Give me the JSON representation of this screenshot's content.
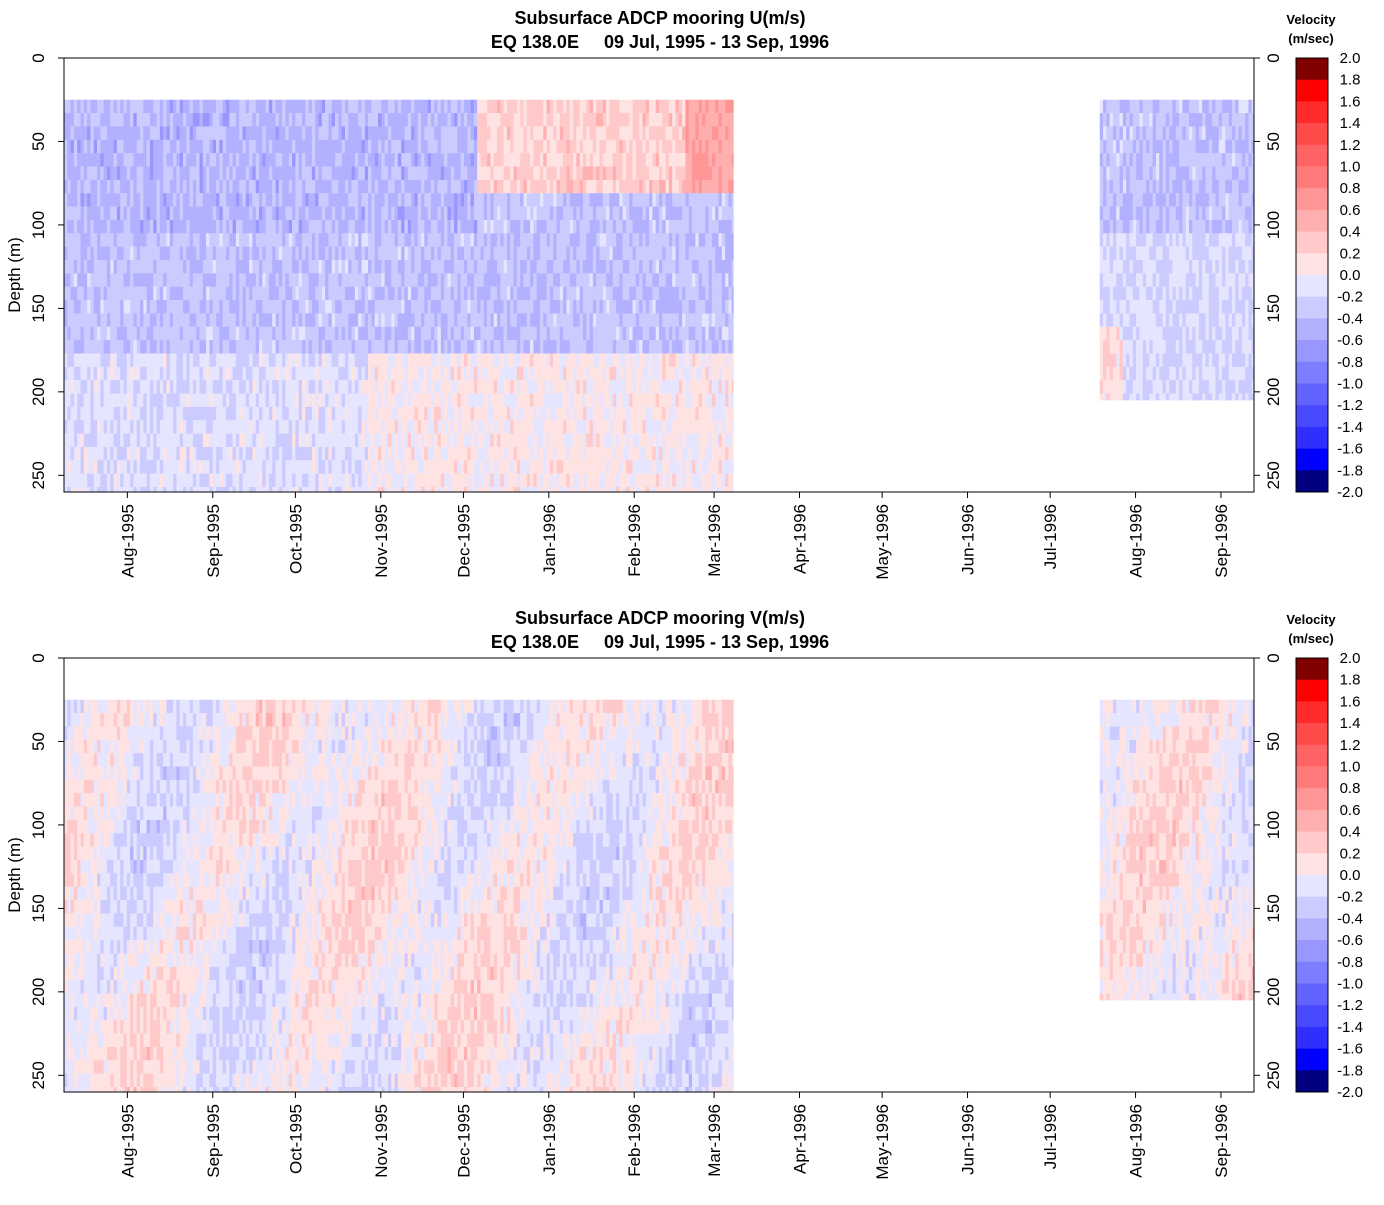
{
  "colorbar": {
    "title_line1": "Velocity",
    "title_line2": "(m/sec)",
    "levels": [
      "2.0",
      "1.8",
      "1.6",
      "1.4",
      "1.2",
      "1.0",
      "0.8",
      "0.6",
      "0.4",
      "0.2",
      "0.0",
      "-0.2",
      "-0.4",
      "-0.6",
      "-0.8",
      "-1.0",
      "-1.2",
      "-1.4",
      "-1.6",
      "-1.8",
      "-2.0"
    ],
    "colors": [
      "#800000",
      "#ff0000",
      "#ff2a2a",
      "#ff4a4a",
      "#ff6363",
      "#ff7b7b",
      "#ff9595",
      "#ffafaf",
      "#ffc9c9",
      "#ffe3e3",
      "#e5e5ff",
      "#cbcbff",
      "#b1b1ff",
      "#9797ff",
      "#7d7dff",
      "#6363ff",
      "#4949ff",
      "#2f2fff",
      "#0000ff",
      "#000080"
    ]
  },
  "chart_data": [
    {
      "type": "heatmap",
      "title": "Subsurface ADCP mooring U(m/s)",
      "subtitle": "EQ 138.0E     09 Jul, 1995 - 13 Sep, 1996",
      "ylabel": "Depth (m)",
      "xlim": [
        "1995-07-09",
        "1996-09-13"
      ],
      "ylim": [
        260,
        0
      ],
      "yticks": [
        "0",
        "50",
        "100",
        "150",
        "200",
        "250"
      ],
      "xticks": [
        "Aug-1995",
        "Sep-1995",
        "Oct-1995",
        "Nov-1995",
        "Dec-1995",
        "Jan-1996",
        "Feb-1996",
        "Mar-1996",
        "Apr-1996",
        "May-1996",
        "Jun-1996",
        "Jul-1996",
        "Aug-1996",
        "Sep-1996"
      ],
      "segments": [
        {
          "start": "1995-07-09",
          "end": "1996-03-08",
          "depth_top": 25,
          "depth_bottom": 260
        },
        {
          "start": "1996-07-19",
          "end": "1996-09-13",
          "depth_top": 25,
          "depth_bottom": 205
        }
      ],
      "color_scale": [
        -2.0,
        2.0
      ],
      "grid": false,
      "legend": "right"
    },
    {
      "type": "heatmap",
      "title": "Subsurface ADCP mooring V(m/s)",
      "subtitle": "EQ 138.0E     09 Jul, 1995 - 13 Sep, 1996",
      "ylabel": "Depth (m)",
      "xlim": [
        "1995-07-09",
        "1996-09-13"
      ],
      "ylim": [
        260,
        0
      ],
      "yticks": [
        "0",
        "50",
        "100",
        "150",
        "200",
        "250"
      ],
      "xticks": [
        "Aug-1995",
        "Sep-1995",
        "Oct-1995",
        "Nov-1995",
        "Dec-1995",
        "Jan-1996",
        "Feb-1996",
        "Mar-1996",
        "Apr-1996",
        "May-1996",
        "Jun-1996",
        "Jul-1996",
        "Aug-1996",
        "Sep-1996"
      ],
      "segments": [
        {
          "start": "1995-07-09",
          "end": "1996-03-08",
          "depth_top": 25,
          "depth_bottom": 260
        },
        {
          "start": "1996-07-19",
          "end": "1996-09-13",
          "depth_top": 25,
          "depth_bottom": 205
        }
      ],
      "color_scale": [
        -2.0,
        2.0
      ],
      "grid": false,
      "legend": "right"
    }
  ]
}
